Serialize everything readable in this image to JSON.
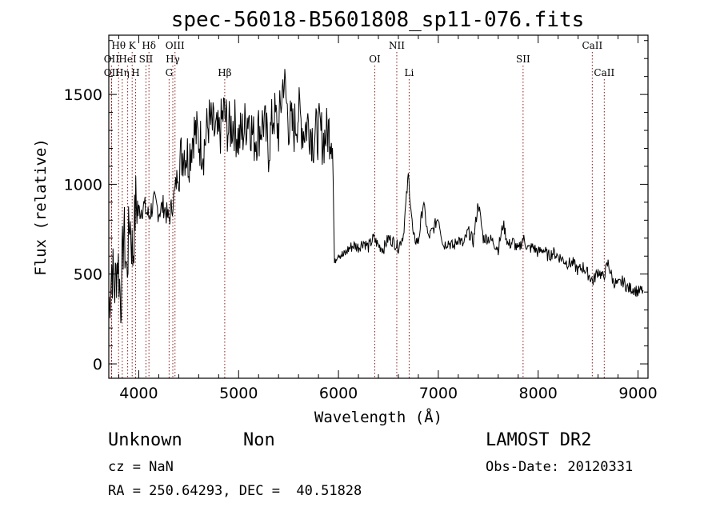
{
  "chart_data": {
    "type": "line",
    "title": "spec-56018-B5601808_sp11-076.fits",
    "xlabel": "Wavelength (Å)",
    "ylabel": "Flux (relative)",
    "xlim": [
      3700,
      9100
    ],
    "ylim": [
      -80,
      1830
    ],
    "x_ticks": [
      4000,
      5000,
      6000,
      7000,
      8000,
      9000
    ],
    "y_ticks": [
      0,
      500,
      1000,
      1500
    ],
    "grid": false,
    "series": [
      {
        "x": [
          3700,
          3730,
          3760,
          3790,
          3820,
          3850,
          3880,
          3910,
          3940,
          3970,
          4000,
          4050,
          4100,
          4150,
          4200,
          4250,
          4300,
          4350,
          4400,
          4450,
          4500,
          4550,
          4600,
          4650,
          4700,
          4750,
          4800,
          4850,
          4900,
          4950,
          5000,
          5050,
          5100,
          5150,
          5200,
          5250,
          5300,
          5350,
          5400,
          5450,
          5500,
          5550,
          5600,
          5650,
          5700,
          5750,
          5800,
          5850,
          5900,
          5940,
          5960,
          6000,
          6050,
          6100,
          6150,
          6200,
          6250,
          6300,
          6350,
          6400,
          6450,
          6500,
          6550,
          6600,
          6650,
          6700,
          6750,
          6800,
          6850,
          6900,
          6950,
          7000,
          7050,
          7100,
          7150,
          7200,
          7250,
          7300,
          7350,
          7400,
          7450,
          7500,
          7550,
          7600,
          7650,
          7700,
          7750,
          7800,
          7850,
          7900,
          7950,
          8000,
          8050,
          8100,
          8150,
          8200,
          8250,
          8300,
          8350,
          8400,
          8450,
          8500,
          8550,
          8600,
          8650,
          8700,
          8750,
          8800,
          8850,
          8900,
          8950,
          9000,
          9050
        ],
        "values": [
          300,
          550,
          420,
          600,
          350,
          750,
          500,
          820,
          600,
          900,
          850,
          880,
          820,
          900,
          850,
          880,
          800,
          920,
          1100,
          1200,
          1150,
          1300,
          1250,
          1200,
          1350,
          1300,
          1250,
          1400,
          1300,
          1350,
          1250,
          1300,
          1400,
          1250,
          1300,
          1350,
          1200,
          1400,
          1300,
          1600,
          1350,
          1300,
          1400,
          1300,
          1350,
          1250,
          1300,
          1250,
          1300,
          1280,
          560,
          620,
          600,
          640,
          660,
          650,
          680,
          650,
          700,
          660,
          640,
          700,
          680,
          650,
          720,
          1050,
          700,
          680,
          900,
          700,
          750,
          820,
          660,
          680,
          650,
          700,
          660,
          740,
          680,
          900,
          700,
          700,
          680,
          640,
          780,
          660,
          680,
          630,
          700,
          640,
          650,
          620,
          640,
          600,
          620,
          600,
          580,
          560,
          560,
          520,
          540,
          500,
          460,
          520,
          480,
          560,
          460,
          440,
          460,
          420,
          420,
          400,
          410
        ]
      }
    ],
    "spectral_lines": [
      {
        "label": "Hθ",
        "x": 3798,
        "row": 1
      },
      {
        "label": "OII",
        "x": 3727,
        "row": 2
      },
      {
        "label": "OII",
        "x": 3727,
        "row": 3
      },
      {
        "label": "Hη",
        "x": 3835,
        "row": 3
      },
      {
        "label": "HeI",
        "x": 3889,
        "row": 2
      },
      {
        "label": "K",
        "x": 3934,
        "row": 1
      },
      {
        "label": "H",
        "x": 3968,
        "row": 3
      },
      {
        "label": "SII",
        "x": 4072,
        "row": 2
      },
      {
        "label": "Hδ",
        "x": 4102,
        "row": 1
      },
      {
        "label": "OIII",
        "x": 4363,
        "row": 1
      },
      {
        "label": "Hγ",
        "x": 4341,
        "row": 2
      },
      {
        "label": "G",
        "x": 4304,
        "row": 3
      },
      {
        "label": "Hβ",
        "x": 4861,
        "row": 3
      },
      {
        "label": "OI",
        "x": 6364,
        "row": 2
      },
      {
        "label": "NII",
        "x": 6584,
        "row": 1
      },
      {
        "label": "Li",
        "x": 6708,
        "row": 3
      },
      {
        "label": "SII",
        "x": 7849,
        "row": 2
      },
      {
        "label": "CaII",
        "x": 8542,
        "row": 1
      },
      {
        "label": "CaII",
        "x": 8662,
        "row": 3
      }
    ]
  },
  "info": {
    "object_class": "Unknown",
    "subclass": "Non",
    "survey": "LAMOST DR2",
    "cz": "cz = NaN",
    "obs_date": "Obs-Date: 20120331",
    "coords": "RA = 250.64293, DEC =  40.51828"
  }
}
